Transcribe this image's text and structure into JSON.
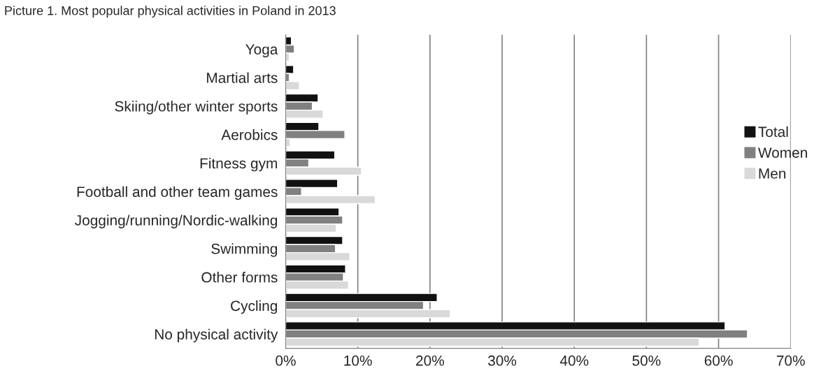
{
  "chart_data": {
    "type": "bar",
    "orientation": "horizontal",
    "title": "Picture 1. Most popular physical activities in Poland in 2013",
    "categories": [
      "Yoga",
      "Martial arts",
      "Skiing/other winter sports",
      "Aerobics",
      "Fitness gym",
      "Football and other team games",
      "Jogging/running/Nordic-walking",
      "Swimming",
      "Other forms",
      "Cycling",
      "No physical activity"
    ],
    "series": [
      {
        "name": "Total",
        "color": "#111111",
        "values": [
          0.8,
          1.1,
          4.5,
          4.6,
          6.8,
          7.2,
          7.4,
          7.9,
          8.3,
          21.0,
          60.9
        ]
      },
      {
        "name": "Women",
        "color": "#808080",
        "values": [
          1.2,
          0.5,
          3.7,
          8.2,
          3.2,
          2.2,
          7.9,
          6.9,
          8.0,
          19.1,
          64.0
        ]
      },
      {
        "name": "Men",
        "color": "#d9d9d9",
        "values": [
          0.5,
          1.9,
          5.2,
          0.6,
          10.5,
          12.4,
          7.0,
          8.9,
          8.7,
          22.8,
          57.3
        ]
      }
    ],
    "xlim": [
      0,
      70
    ],
    "xticks": [
      {
        "value": 0,
        "label": "0%"
      },
      {
        "value": 10,
        "label": "10%"
      },
      {
        "value": 20,
        "label": "20%"
      },
      {
        "value": 30,
        "label": "30%"
      },
      {
        "value": 40,
        "label": "40%"
      },
      {
        "value": 50,
        "label": "50%"
      },
      {
        "value": 60,
        "label": "60%"
      },
      {
        "value": 70,
        "label": "70%"
      }
    ],
    "grid": "x",
    "legend": "right"
  }
}
